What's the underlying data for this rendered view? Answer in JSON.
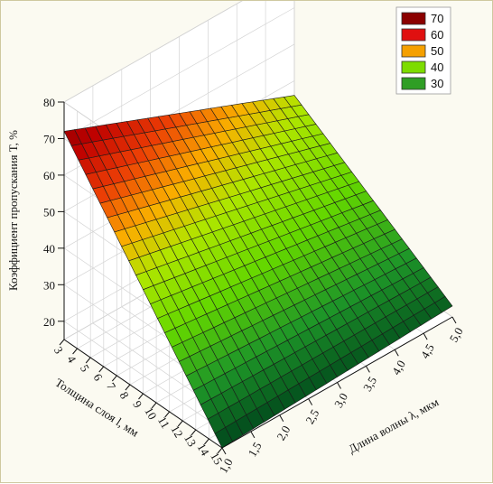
{
  "chart_data": {
    "type": "surface3d",
    "z_label": "Коэффициент пропускания T, %",
    "x_label": "Длина волны λ, мкм",
    "y_label": "Толщина слоя l, мм",
    "z_ticks": [
      "80",
      "70",
      "60",
      "50",
      "40",
      "30",
      "20"
    ],
    "x_ticks": [
      "1,0",
      "1,5",
      "2,0",
      "2,5",
      "3,0",
      "3,5",
      "4,0",
      "4,5",
      "5,0"
    ],
    "y_ticks": [
      "3",
      "4",
      "5",
      "6",
      "7",
      "8",
      "9",
      "10",
      "11",
      "12",
      "13",
      "14",
      "15"
    ],
    "x_range": [
      1.0,
      5.0
    ],
    "y_range": [
      3,
      15
    ],
    "z_range": [
      15,
      80
    ],
    "corner_values": {
      "x1.0_y3": 72,
      "x5.0_y3": 46,
      "x1.0_y15": 15,
      "x5.0_y15": 18
    },
    "legend": [
      {
        "label": "70",
        "color": "#8b0000"
      },
      {
        "label": "60",
        "color": "#e01010"
      },
      {
        "label": "50",
        "color": "#f5a000"
      },
      {
        "label": "40",
        "color": "#7ddc00"
      },
      {
        "label": "30",
        "color": "#2f9e25"
      }
    ]
  }
}
